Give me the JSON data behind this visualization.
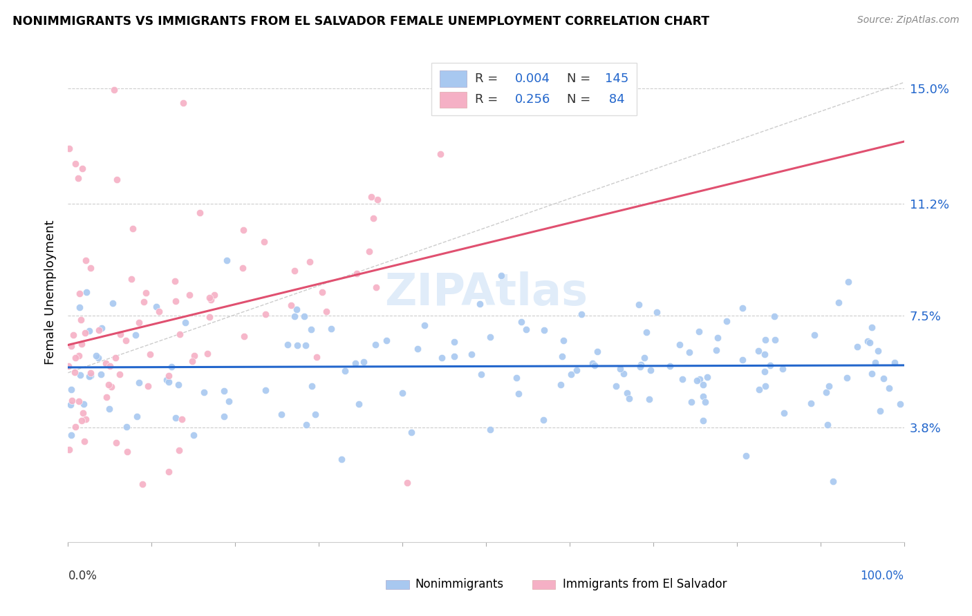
{
  "title": "NONIMMIGRANTS VS IMMIGRANTS FROM EL SALVADOR FEMALE UNEMPLOYMENT CORRELATION CHART",
  "source": "Source: ZipAtlas.com",
  "ylabel": "Female Unemployment",
  "ytick_labels": [
    "3.8%",
    "7.5%",
    "11.2%",
    "15.0%"
  ],
  "ytick_values": [
    3.8,
    7.5,
    11.2,
    15.0
  ],
  "watermark": "ZIPAtlas",
  "nonimmigrant_color": "#a8c8f0",
  "nonimmigrant_line_color": "#2266cc",
  "immigrant_color": "#f5b0c5",
  "immigrant_line_color": "#e05070",
  "R_nonimmigrant": "0.004",
  "N_nonimmigrant": "145",
  "R_immigrant": "0.256",
  "N_immigrant": "84",
  "xmin": 0.0,
  "xmax": 100.0,
  "ymin": 0.0,
  "ymax": 16.5,
  "ybaseline": 5.8
}
